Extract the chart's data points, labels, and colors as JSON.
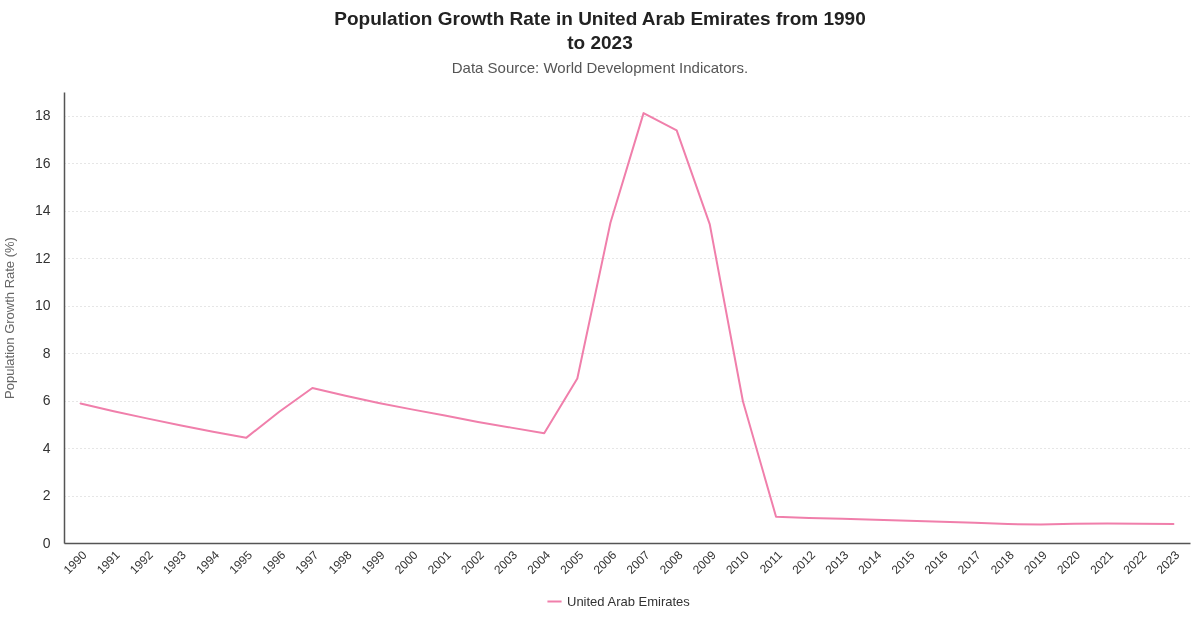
{
  "chart_data": {
    "type": "line",
    "title": "Population Growth Rate in United Arab Emirates from 1990 to 2023",
    "subtitle": "Data Source: World Development Indicators.",
    "ylabel": "Population Growth Rate (%)",
    "categories": [
      "1990",
      "1991",
      "1992",
      "1993",
      "1994",
      "1995",
      "1996",
      "1997",
      "1998",
      "1999",
      "2000",
      "2001",
      "2002",
      "2003",
      "2004",
      "2005",
      "2006",
      "2007",
      "2008",
      "2009",
      "2010",
      "2011",
      "2012",
      "2013",
      "2014",
      "2015",
      "2016",
      "2017",
      "2018",
      "2019",
      "2020",
      "2021",
      "2022",
      "2023"
    ],
    "series": [
      {
        "name": "United Arab Emirates",
        "color": "#f07fab",
        "values": [
          5.88,
          5.55,
          5.25,
          4.96,
          4.69,
          4.43,
          5.53,
          6.53,
          6.2,
          5.9,
          5.63,
          5.37,
          5.1,
          4.86,
          4.62,
          6.93,
          13.49,
          18.11,
          17.38,
          13.42,
          5.97,
          1.11,
          1.05,
          1.02,
          0.98,
          0.94,
          0.89,
          0.85,
          0.8,
          0.78,
          0.81,
          0.82,
          0.81,
          0.8
        ]
      }
    ],
    "ylim": [
      0,
      19
    ],
    "yticks": [
      0,
      2,
      4,
      6,
      8,
      10,
      12,
      14,
      16,
      18
    ],
    "grid": "y",
    "legend": "bottom"
  }
}
